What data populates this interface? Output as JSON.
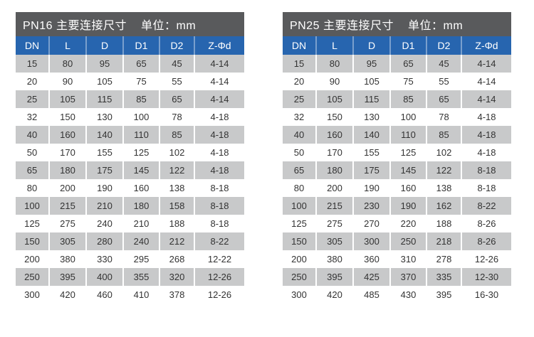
{
  "page": {
    "background": "#ffffff"
  },
  "colors": {
    "title_bar_bg": "#595a5c",
    "title_text": "#ffffff",
    "header_bg": "#2765af",
    "header_text": "#ffffff",
    "stripe_row_bg": "#c8c9ca",
    "plain_row_bg": "#ffffff",
    "cell_text": "#333333"
  },
  "chart_data": [
    {
      "type": "table",
      "title": "PN16 主要连接尺寸",
      "unit_label": "单位：mm",
      "columns": [
        "DN",
        "L",
        "D",
        "D1",
        "D2",
        "Z-Φd"
      ],
      "rows": [
        [
          "15",
          "80",
          "95",
          "65",
          "45",
          "4-14"
        ],
        [
          "20",
          "90",
          "105",
          "75",
          "55",
          "4-14"
        ],
        [
          "25",
          "105",
          "115",
          "85",
          "65",
          "4-14"
        ],
        [
          "32",
          "150",
          "130",
          "100",
          "78",
          "4-18"
        ],
        [
          "40",
          "160",
          "140",
          "110",
          "85",
          "4-18"
        ],
        [
          "50",
          "170",
          "155",
          "125",
          "102",
          "4-18"
        ],
        [
          "65",
          "180",
          "175",
          "145",
          "122",
          "4-18"
        ],
        [
          "80",
          "200",
          "190",
          "160",
          "138",
          "8-18"
        ],
        [
          "100",
          "215",
          "210",
          "180",
          "158",
          "8-18"
        ],
        [
          "125",
          "275",
          "240",
          "210",
          "188",
          "8-18"
        ],
        [
          "150",
          "305",
          "280",
          "240",
          "212",
          "8-22"
        ],
        [
          "200",
          "380",
          "330",
          "295",
          "268",
          "12-22"
        ],
        [
          "250",
          "395",
          "400",
          "355",
          "320",
          "12-26"
        ],
        [
          "300",
          "420",
          "460",
          "410",
          "378",
          "12-26"
        ]
      ]
    },
    {
      "type": "table",
      "title": "PN25 主要连接尺寸",
      "unit_label": "单位：mm",
      "columns": [
        "DN",
        "L",
        "D",
        "D1",
        "D2",
        "Z-Φd"
      ],
      "rows": [
        [
          "15",
          "80",
          "95",
          "65",
          "45",
          "4-14"
        ],
        [
          "20",
          "90",
          "105",
          "75",
          "55",
          "4-14"
        ],
        [
          "25",
          "105",
          "115",
          "85",
          "65",
          "4-14"
        ],
        [
          "32",
          "150",
          "130",
          "100",
          "78",
          "4-18"
        ],
        [
          "40",
          "160",
          "140",
          "110",
          "85",
          "4-18"
        ],
        [
          "50",
          "170",
          "155",
          "125",
          "102",
          "4-18"
        ],
        [
          "65",
          "180",
          "175",
          "145",
          "122",
          "8-18"
        ],
        [
          "80",
          "200",
          "190",
          "160",
          "138",
          "8-18"
        ],
        [
          "100",
          "215",
          "230",
          "190",
          "162",
          "8-22"
        ],
        [
          "125",
          "275",
          "270",
          "220",
          "188",
          "8-26"
        ],
        [
          "150",
          "305",
          "300",
          "250",
          "218",
          "8-26"
        ],
        [
          "200",
          "380",
          "360",
          "310",
          "278",
          "12-26"
        ],
        [
          "250",
          "395",
          "425",
          "370",
          "335",
          "12-30"
        ],
        [
          "300",
          "420",
          "485",
          "430",
          "395",
          "16-30"
        ]
      ]
    }
  ]
}
